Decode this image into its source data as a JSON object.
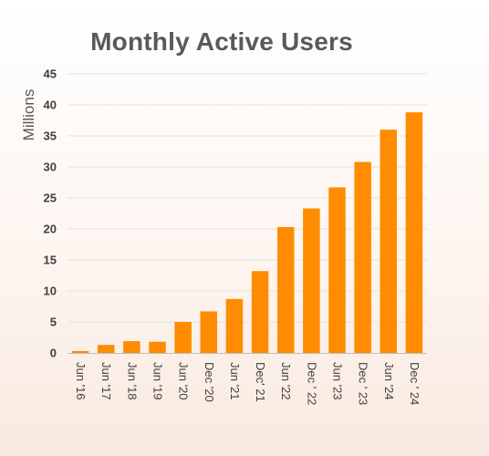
{
  "chart_data": {
    "type": "bar",
    "title": "Monthly Active Users",
    "xlabel": "",
    "ylabel": "Millions",
    "categories": [
      "Jun '16",
      "Jun '17",
      "Jun '18",
      "Jun '19",
      "Jun '20",
      "Dec '20",
      "Jun '21",
      "Dec' 21",
      "Jun '22",
      "Dec ' 22",
      "Jun '23",
      "Dec ' 23",
      "Jun '24",
      "Dec ' 24"
    ],
    "values": [
      0.3,
      1.3,
      1.9,
      1.8,
      5.0,
      6.7,
      8.7,
      13.2,
      20.3,
      23.3,
      26.7,
      30.8,
      36.0,
      38.8
    ],
    "ylim": [
      0,
      45
    ],
    "yticks": [
      0,
      5,
      10,
      15,
      20,
      25,
      30,
      35,
      40,
      45
    ],
    "grid": true,
    "legend": "none",
    "colors": {
      "bar": "#ff8c00",
      "grid": "#e3e3e3",
      "axis": "#bfbfbf",
      "title": "#595959",
      "tick_text": "#404040"
    }
  }
}
